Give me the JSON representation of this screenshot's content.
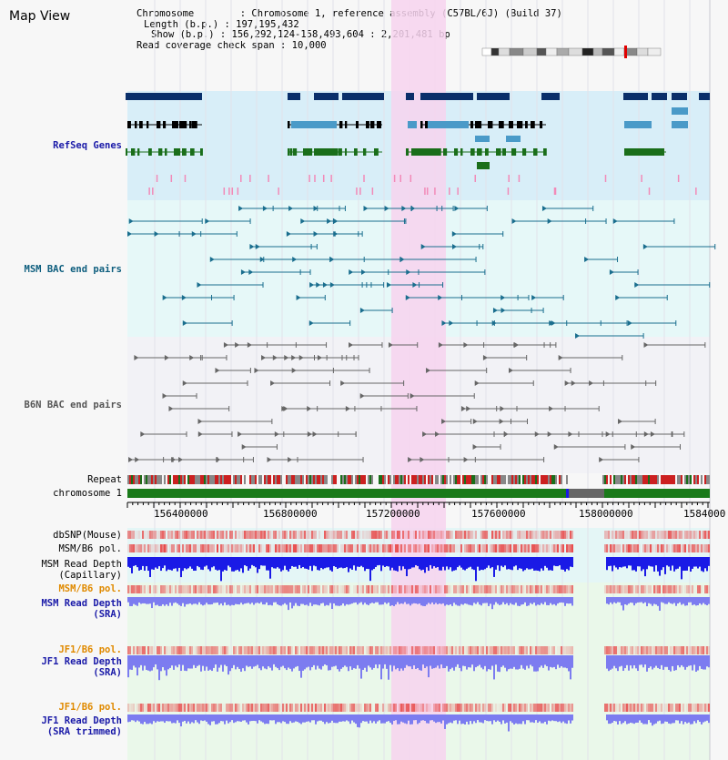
{
  "app_title": "Map View",
  "info": {
    "chromosome": "Chromosome        : Chromosome 1, reference assembly (C57BL/6J) (Build 37)",
    "length": "Length (b.p.) : 197,195,432",
    "show": "Show (b.p.) : 156,292,124-158,493,604 : 2,201,481 bp",
    "coverage": "Read coverage check span : 10,000"
  },
  "tracks": {
    "refseq": "RefSeq Genes",
    "msm_bac": "MSM BAC end pairs",
    "b6n_bac": "B6N BAC end pairs",
    "repeat": "Repeat",
    "chromosome": "chromosome 1",
    "dbsnp": "dbSNP(Mouse)",
    "msm_b6_pol": "MSM/B6 pol.",
    "msm_depth_cap_1": "MSM Read Depth",
    "msm_depth_cap_2": "(Capillary)",
    "msm_b6_pol_sra": "MSM/B6 pol.",
    "msm_depth_sra_1": "MSM Read Depth",
    "msm_depth_sra_2": "(SRA)",
    "jf1_b6_pol": "JF1/B6 pol.",
    "jf1_depth_1": "JF1 Read Depth",
    "jf1_depth_2": "(SRA)",
    "jf1_b6_pol_trim": "JF1/B6 pol.",
    "jf1_depth_trim_1": "JF1 Read Depth",
    "jf1_depth_trim_2": "(SRA trimmed)"
  },
  "ruler": {
    "labels": [
      "156400000",
      "156800000",
      "157200000",
      "157600000",
      "158000000",
      "1584000"
    ]
  },
  "colors": {
    "refseq_bg": "#d8eef8",
    "highlight": "#f7d4ee",
    "chromosome_green": "#1a7a1a",
    "depth_blue": "#1a1ae6",
    "depth_light": "#7c7cf0",
    "pol_red": "#e84a4a"
  }
}
